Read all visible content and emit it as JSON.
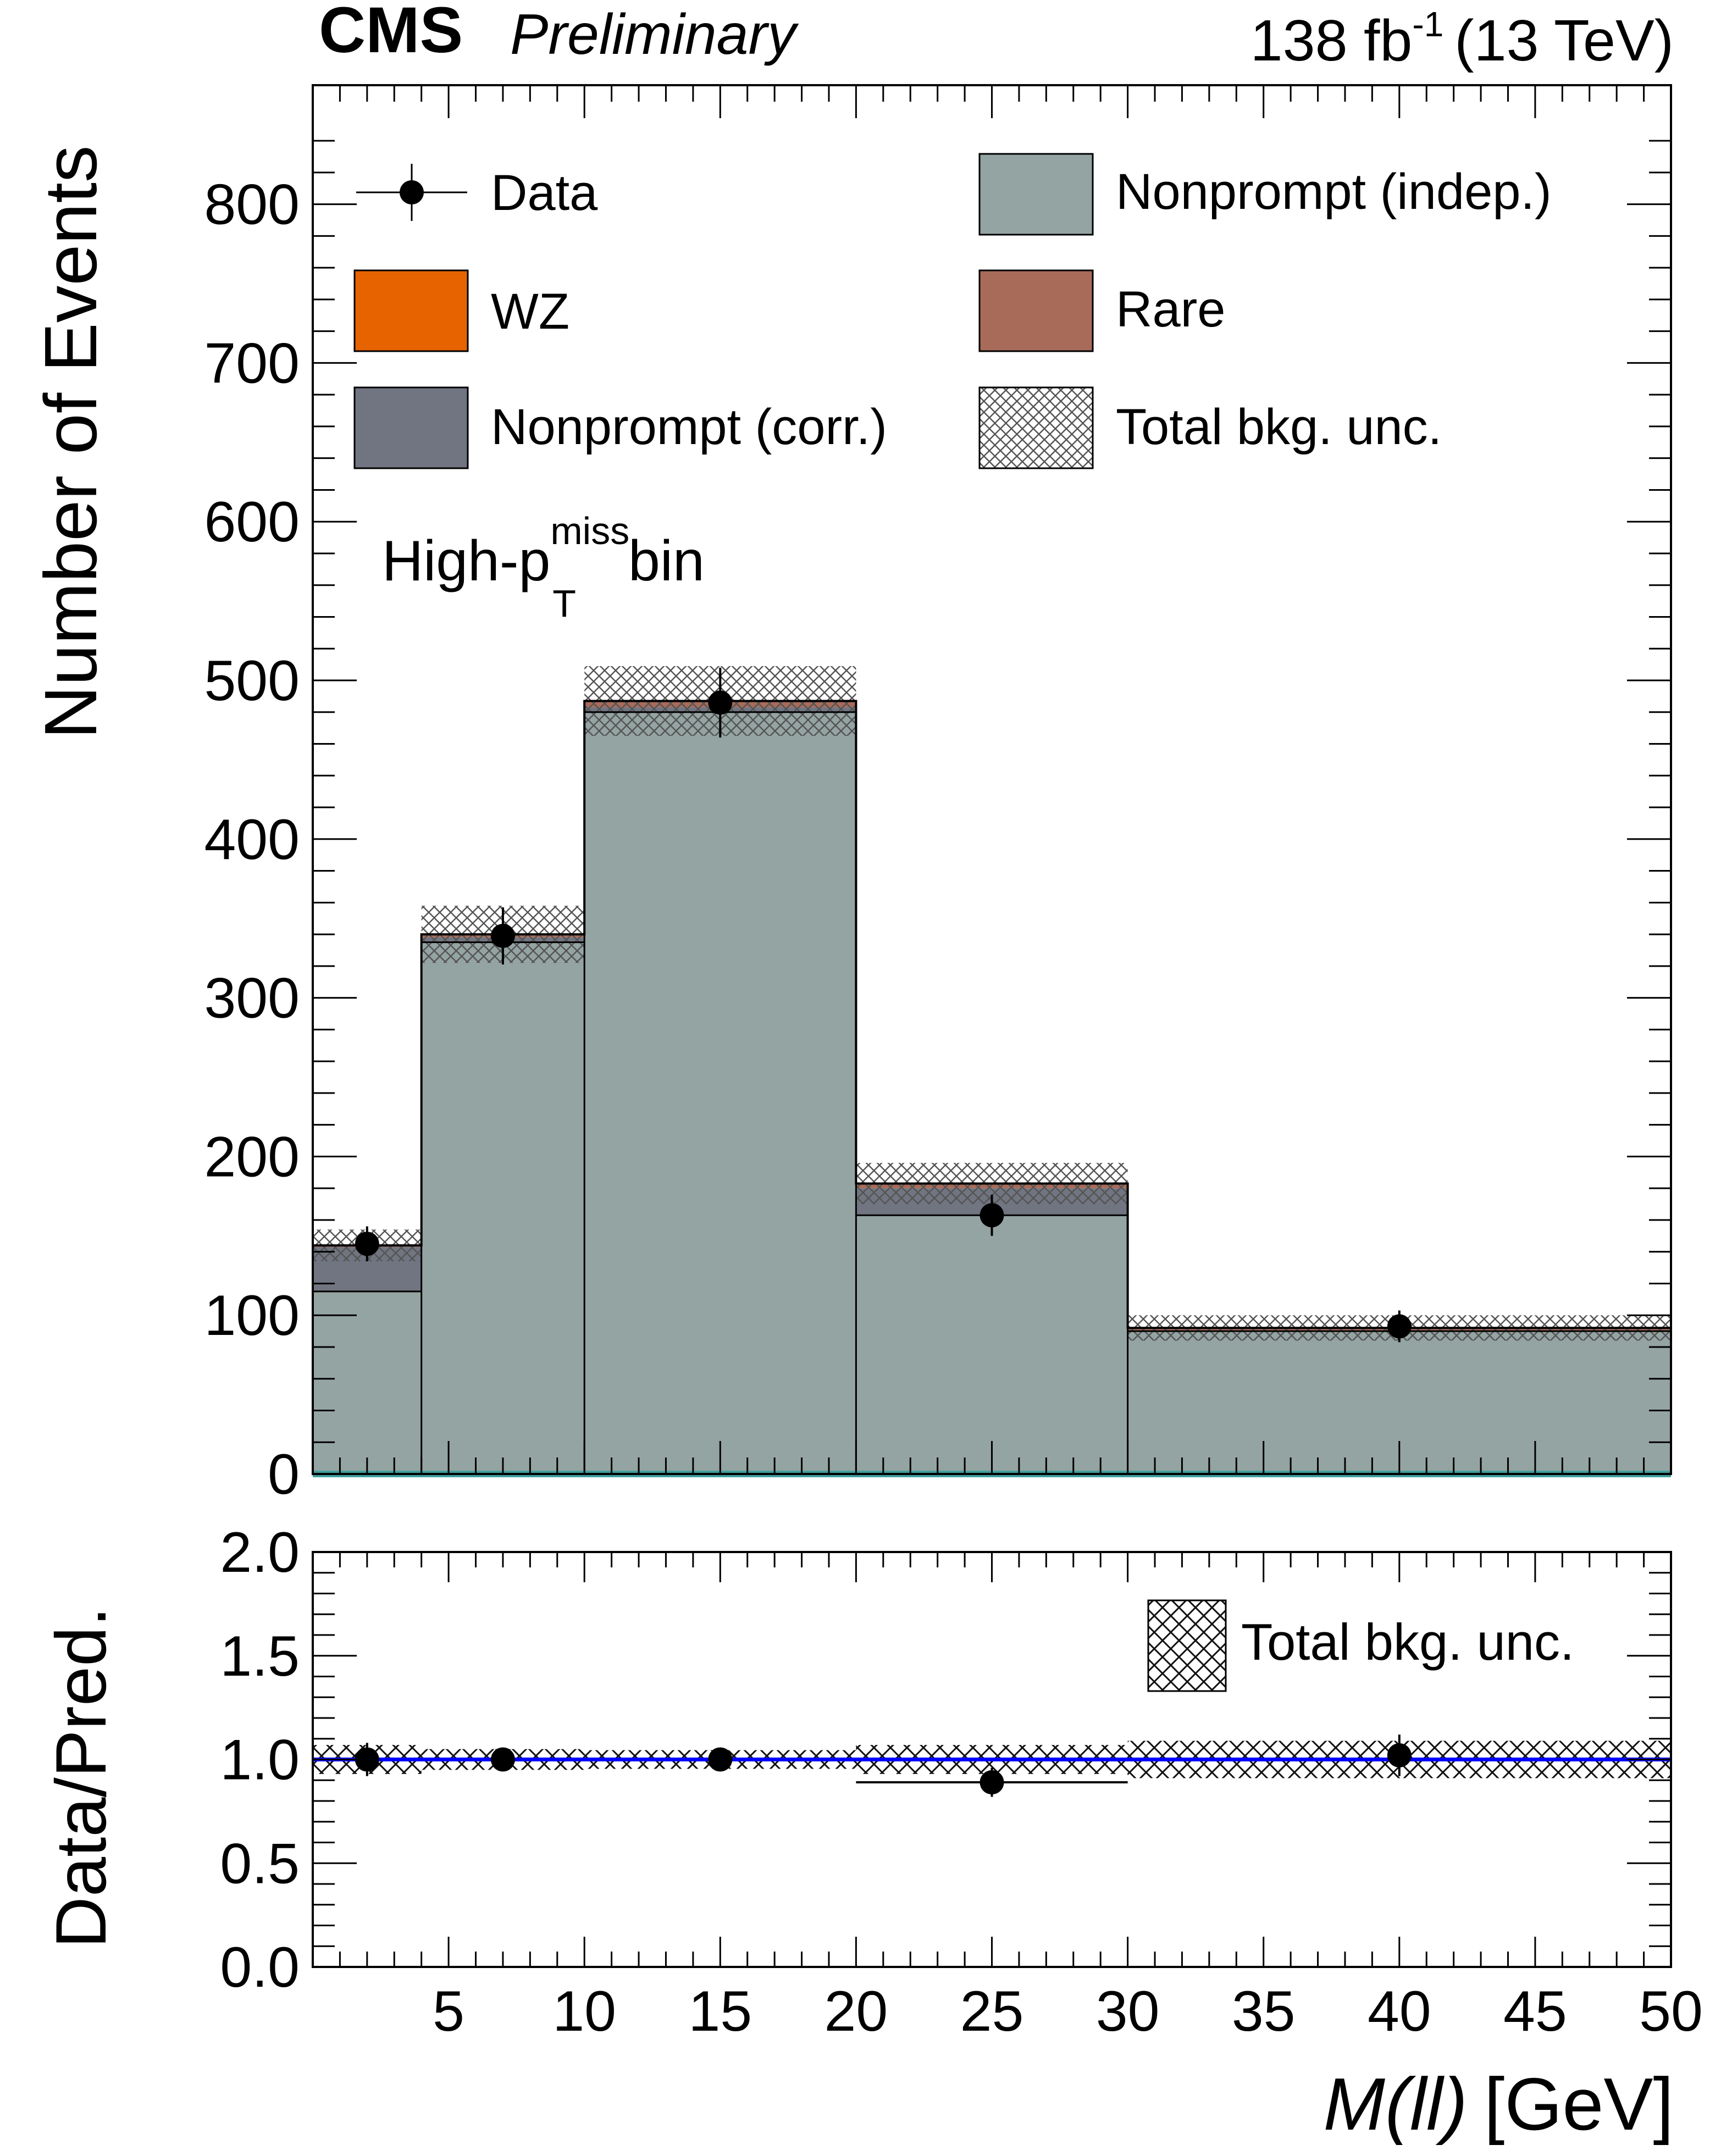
{
  "header": {
    "experiment": "CMS",
    "status": "Preliminary",
    "lumi": "138 fb",
    "lumi_exp": "-1",
    "energy": "(13 TeV)"
  },
  "annotation": {
    "main": "High-p",
    "sup": "miss",
    "sub": "T",
    "tail": "bin"
  },
  "legend": {
    "data": "Data",
    "wz": "WZ",
    "nonprompt_corr": "Nonprompt (corr.)",
    "nonprompt_indep": "Nonprompt (indep.)",
    "rare": "Rare",
    "total_unc": "Total bkg. unc."
  },
  "colors": {
    "wz": "#e76300",
    "rare": "#a96b59",
    "nonprompt_corr": "#717581",
    "nonprompt_indep": "#94a4a2",
    "ratio_line": "#0000ff",
    "zero_line": "#3f9f9f"
  },
  "chart_data": [
    {
      "type": "bar",
      "stacked": true,
      "xlabel_italic": "M(ll)",
      "xlabel_unit": "[GeV]",
      "ylabel": "Number of Events",
      "xlim": [
        0,
        50
      ],
      "ylim": [
        0,
        875
      ],
      "yticks": [
        0,
        100,
        200,
        300,
        400,
        500,
        600,
        700,
        800
      ],
      "bins": [
        [
          0,
          4
        ],
        [
          4,
          10
        ],
        [
          10,
          20
        ],
        [
          20,
          30
        ],
        [
          30,
          50
        ]
      ],
      "series": [
        {
          "name": "Nonprompt (indep.)",
          "values": [
            115,
            335,
            480,
            163,
            90
          ]
        },
        {
          "name": "Nonprompt (corr.)",
          "values": [
            28,
            3,
            3,
            17,
            0
          ]
        },
        {
          "name": "WZ",
          "values": [
            0,
            0,
            0,
            0,
            0
          ]
        },
        {
          "name": "Rare",
          "values": [
            1,
            2,
            4,
            3,
            2
          ]
        }
      ],
      "total_unc": [
        10,
        18,
        22,
        13,
        8
      ],
      "data": {
        "x": [
          2,
          7,
          15,
          25,
          40
        ],
        "y": [
          145,
          339,
          486,
          163,
          93
        ],
        "err": [
          11,
          18,
          22,
          13,
          10
        ]
      }
    },
    {
      "type": "scatter",
      "ylabel": "Data/Pred.",
      "xlim": [
        0,
        50
      ],
      "ylim": [
        0,
        2
      ],
      "yticks": [
        "0.0",
        "0.5",
        "1.0",
        "1.5",
        "2.0"
      ],
      "xticks": [
        5,
        10,
        15,
        20,
        25,
        30,
        35,
        40,
        45,
        50
      ],
      "reference_line": 1.0,
      "bins": [
        [
          0,
          4
        ],
        [
          4,
          10
        ],
        [
          10,
          20
        ],
        [
          20,
          30
        ],
        [
          30,
          50
        ]
      ],
      "unc_band": [
        0.07,
        0.05,
        0.045,
        0.07,
        0.09
      ],
      "ratio": {
        "x": [
          2,
          7,
          15,
          25,
          40
        ],
        "y": [
          1.0,
          1.0,
          1.0,
          0.89,
          1.02
        ],
        "err": [
          0.08,
          0.055,
          0.045,
          0.07,
          0.1
        ]
      }
    }
  ]
}
